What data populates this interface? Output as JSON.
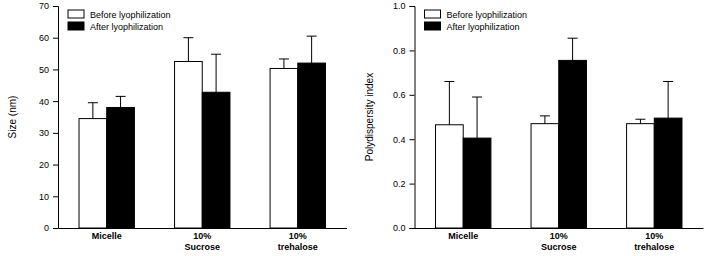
{
  "chart_data": [
    {
      "type": "bar",
      "y_label": "Size (nm)",
      "categories": [
        "Micelle",
        "10%\nSucrose",
        "10%\ntrehalose"
      ],
      "series": [
        {
          "name": "Before lyophilization",
          "color": "#ffffff",
          "values": [
            34.5,
            52.5,
            50.3
          ],
          "errors": [
            5.0,
            7.5,
            3.0
          ]
        },
        {
          "name": "After lyophilization",
          "color": "#000000",
          "values": [
            38.0,
            42.8,
            52.0
          ],
          "errors": [
            3.5,
            12.0,
            8.5
          ]
        }
      ],
      "ylim": [
        0,
        70
      ],
      "yticks": [
        0,
        10,
        20,
        30,
        40,
        50,
        60,
        70
      ],
      "legend": "upper left"
    },
    {
      "type": "bar",
      "y_label": "Polydispersity index",
      "categories": [
        "Micelle",
        "10%\nSucrose",
        "10%\ntrehalose"
      ],
      "series": [
        {
          "name": "Before lyophilization",
          "color": "#ffffff",
          "values": [
            0.465,
            0.47,
            0.47
          ],
          "errors": [
            0.195,
            0.035,
            0.02
          ]
        },
        {
          "name": "After lyophilization",
          "color": "#000000",
          "values": [
            0.405,
            0.755,
            0.495
          ],
          "errors": [
            0.185,
            0.1,
            0.165
          ]
        }
      ],
      "ylim": [
        0,
        1
      ],
      "yticks": [
        {
          "value": 0,
          "label": "0.0"
        },
        0.2,
        0.4,
        0.6,
        0.8,
        {
          "value": 1,
          "label": "1.0"
        }
      ],
      "legend": "upper left"
    }
  ]
}
